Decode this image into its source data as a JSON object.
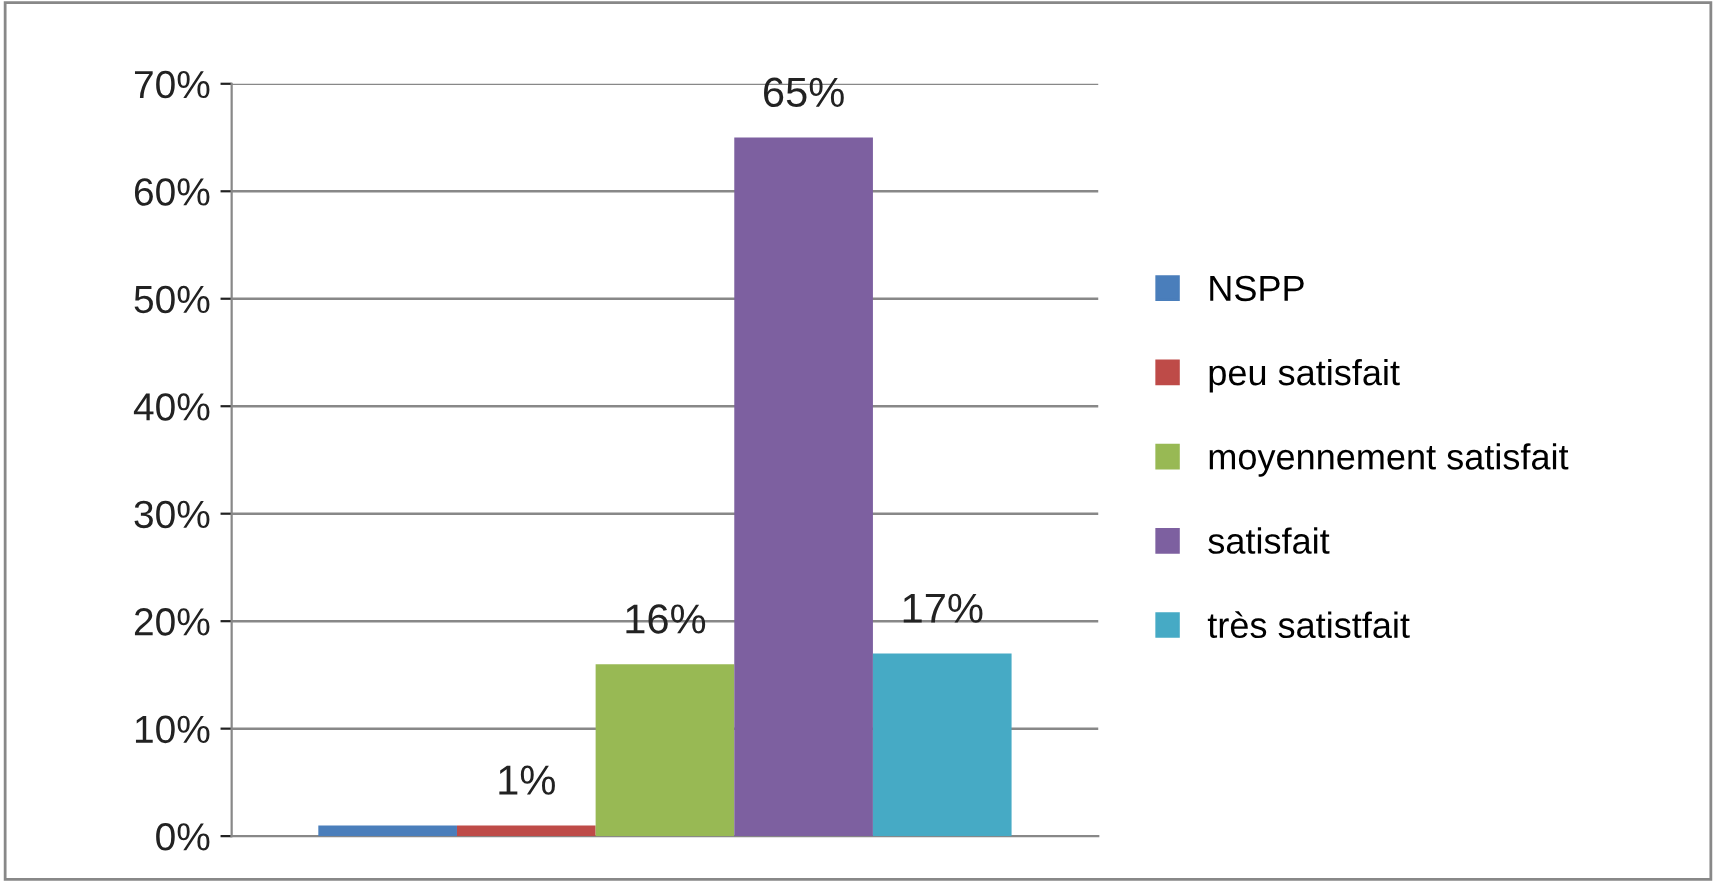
{
  "chart_data": {
    "type": "bar",
    "categories": [
      null
    ],
    "series": [
      {
        "name": "NSPP",
        "color": "#4a7ebb",
        "values": [
          1
        ],
        "value_labels": [
          null
        ]
      },
      {
        "name": "peu satisfait",
        "color": "#be4b48",
        "values": [
          1
        ],
        "value_labels": [
          "1%"
        ]
      },
      {
        "name": "moyennement satisfait",
        "color": "#98b954",
        "values": [
          16
        ],
        "value_labels": [
          "16%"
        ]
      },
      {
        "name": "satisfait",
        "color": "#7d60a0",
        "values": [
          65
        ],
        "value_labels": [
          "65%"
        ]
      },
      {
        "name": "très satistfait",
        "color": "#46aac5",
        "values": [
          17
        ],
        "value_labels": [
          "17%"
        ]
      }
    ],
    "ylim": [
      0,
      70
    ],
    "yticks": [
      {
        "value": 0,
        "label": "0%"
      },
      {
        "value": 10,
        "label": "10%"
      },
      {
        "value": 20,
        "label": "20%"
      },
      {
        "value": 30,
        "label": "30%"
      },
      {
        "value": 40,
        "label": "40%"
      },
      {
        "value": 50,
        "label": "50%"
      },
      {
        "value": 60,
        "label": "60%"
      },
      {
        "value": 70,
        "label": "70%"
      }
    ],
    "grid": "y",
    "legend": "right"
  }
}
